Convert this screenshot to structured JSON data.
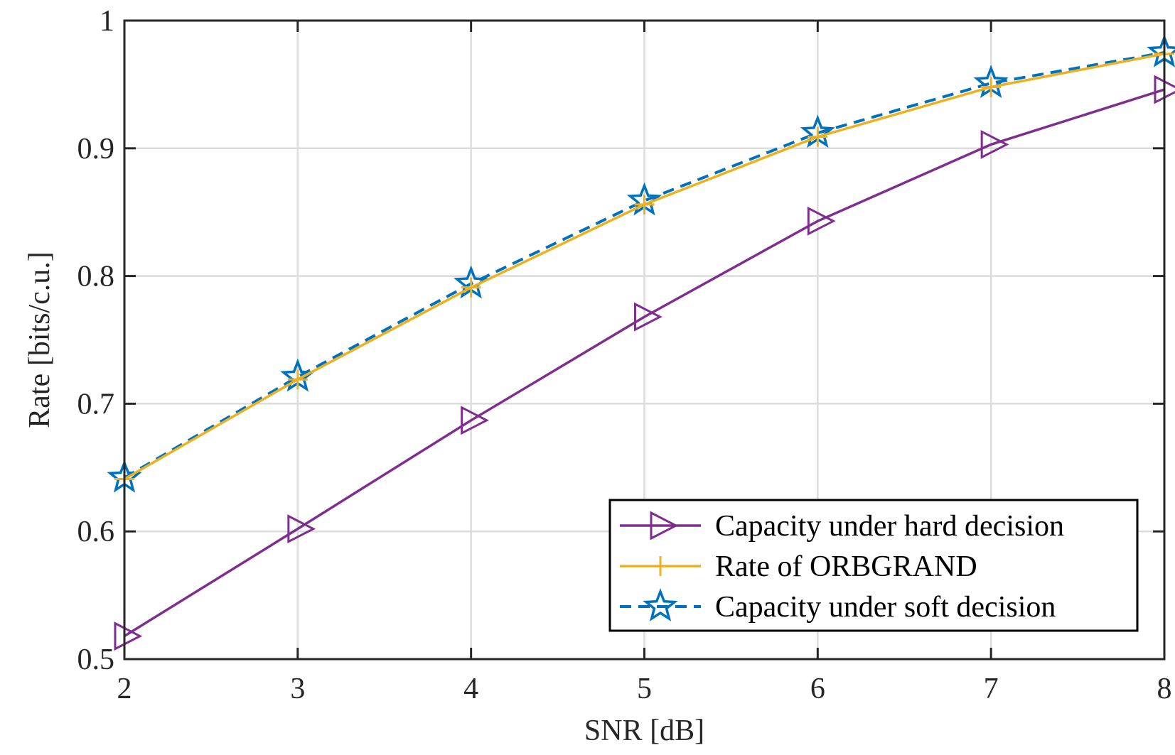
{
  "chart_data": {
    "type": "line",
    "title": "",
    "xlabel": "SNR [dB]",
    "ylabel": "Rate [bits/c.u.]",
    "x": [
      2,
      3,
      4,
      5,
      6,
      7,
      8
    ],
    "xlim": [
      2,
      8
    ],
    "ylim": [
      0.5,
      1
    ],
    "xticks": [
      2,
      3,
      4,
      5,
      6,
      7,
      8
    ],
    "yticks": [
      0.5,
      0.6,
      0.7,
      0.8,
      0.9,
      1
    ],
    "ytick_labels": [
      "0.5",
      "0.6",
      "0.7",
      "0.8",
      "0.9",
      "1"
    ],
    "grid": true,
    "legend_position": "bottom-right",
    "series": [
      {
        "name": "Capacity under hard decision",
        "values": [
          0.518,
          0.602,
          0.687,
          0.768,
          0.843,
          0.903,
          0.946
        ],
        "color": "#7E2F8E",
        "marker": "triangle-right",
        "linestyle": "solid"
      },
      {
        "name": "Rate of ORBGRAND",
        "values": [
          0.641,
          0.719,
          0.791,
          0.856,
          0.909,
          0.948,
          0.974
        ],
        "color": "#EDB120",
        "marker": "plus",
        "linestyle": "solid"
      },
      {
        "name": "Capacity under soft decision",
        "values": [
          0.642,
          0.721,
          0.794,
          0.859,
          0.912,
          0.951,
          0.975
        ],
        "color": "#0072BD",
        "marker": "star",
        "linestyle": "dashed"
      }
    ]
  }
}
